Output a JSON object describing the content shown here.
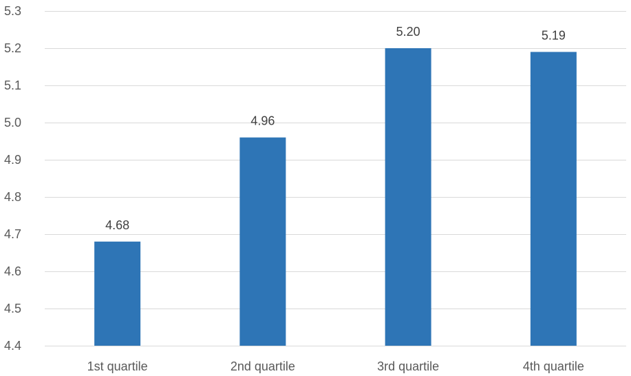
{
  "chart_data": {
    "type": "bar",
    "categories": [
      "1st quartile",
      "2nd quartile",
      "3rd quartile",
      "4th quartile"
    ],
    "values": [
      4.68,
      4.96,
      5.2,
      5.19
    ],
    "data_labels": [
      "4.68",
      "4.96",
      "5.20",
      "5.19"
    ],
    "ylim": [
      4.4,
      5.3
    ],
    "yticks": [
      "4.4",
      "4.5",
      "4.6",
      "4.7",
      "4.8",
      "4.9",
      "5.0",
      "5.1",
      "5.2",
      "5.3"
    ],
    "title": "",
    "xlabel": "",
    "ylabel": "",
    "grid": true,
    "legend": "none",
    "colors": {
      "bar": "#2e75b6",
      "grid": "#d9d9d9",
      "tick_text": "#595959",
      "label_text": "#404040"
    }
  }
}
